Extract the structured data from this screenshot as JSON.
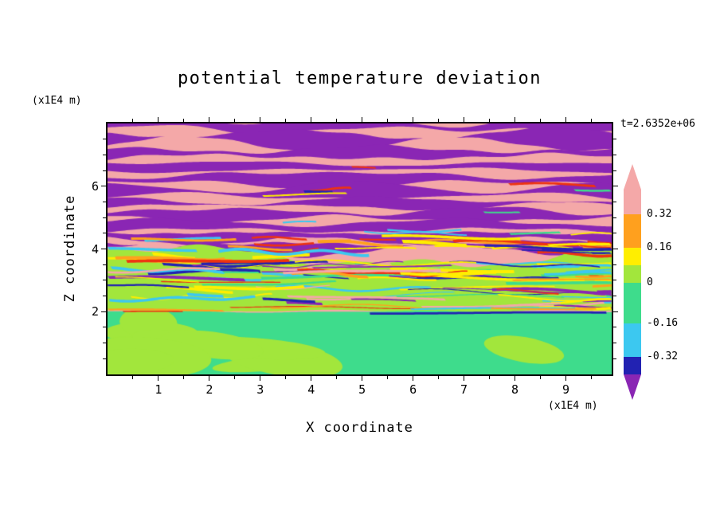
{
  "figure": {
    "title": "potential temperature deviation",
    "timestamp": "t=2.6352e+06",
    "x_axis": {
      "label": "X coordinate",
      "unit": "(x1E4 m)",
      "ticks": [
        1,
        2,
        3,
        4,
        5,
        6,
        7,
        8,
        9
      ]
    },
    "y_axis": {
      "label": "Z coordinate",
      "unit": "(x1E4 m)",
      "ticks": [
        2,
        4,
        6
      ]
    }
  },
  "chart_data": {
    "type": "heatmap",
    "title": "potential temperature deviation",
    "xlabel": "X coordinate",
    "ylabel": "Z coordinate",
    "x_unit": "(x1E4 m)",
    "y_unit": "(x1E4 m)",
    "time_annotation": "t=2.6352e+06",
    "x_ticks": [
      1,
      2,
      3,
      4,
      5,
      6,
      7,
      8,
      9
    ],
    "y_ticks": [
      2,
      4,
      6
    ],
    "x_range": [
      0,
      9.9
    ],
    "z_range": [
      0,
      8
    ],
    "grid": false,
    "legend_position": "right-colorbar",
    "colorbar": {
      "labeled_levels": [
        0.32,
        0.16,
        0,
        -0.16,
        -0.32
      ],
      "tick_labels": [
        "0.32",
        "0.16",
        "0",
        "-0.16",
        "-0.32"
      ],
      "colors_top_to_bottom": [
        "#F4A8A8",
        "#FFA01E",
        "#FFEE00",
        "#A2E63C",
        "#3EDC8C",
        "#3CC8F0",
        "#2222B2"
      ],
      "arrow_top_color": "#F4A8A8",
      "arrow_bottom_color": "#8A26B4"
    },
    "field": {
      "upper_wave_layer": {
        "z_from": 4.0,
        "z_to": 8.0,
        "base_color": "#F4A8A8",
        "band_color": "#8A26B4",
        "band_z_centers": [
          7.93,
          7.5,
          7.05,
          6.62,
          6.22,
          5.82,
          5.45,
          5.08,
          4.72,
          4.38,
          4.05
        ],
        "accent_colors": [
          "#EE3311",
          "#3EDC8C",
          "#3CC8F0",
          "#FFEE00",
          "#2222B2"
        ]
      },
      "turbulent_layer": {
        "z_from": 2.0,
        "z_to": 4.0,
        "base_color": "#A2E63C",
        "streak_colors": [
          "#3EDC8C",
          "#3CC8F0",
          "#2222B2",
          "#FFEE00",
          "#FFA01E",
          "#EE3311",
          "#8A26B4",
          "#F4A8A8"
        ]
      },
      "boundary_layer": {
        "z_from": 0,
        "z_to": 2.0,
        "base_color": "#3EDC8C",
        "blob_color": "#A2E63C"
      }
    }
  }
}
